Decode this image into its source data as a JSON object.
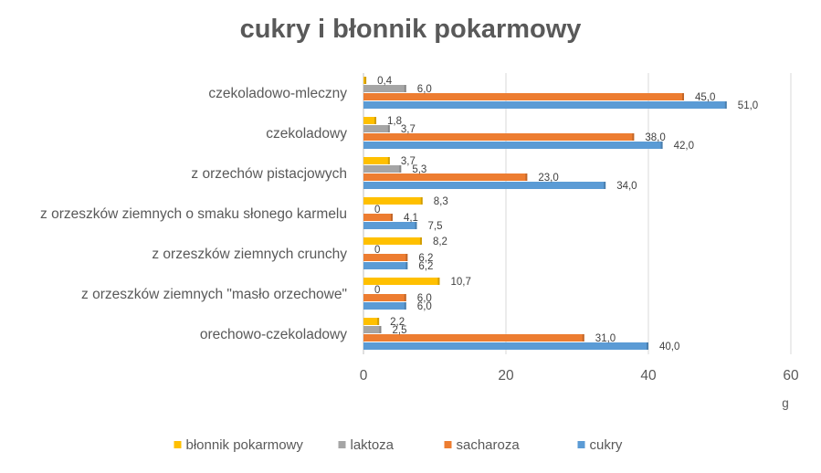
{
  "chart_data": {
    "type": "bar",
    "orientation": "horizontal",
    "title": "cukry i błonnik pokarmowy",
    "xlabel": "g",
    "ylabel": "",
    "xlim": [
      0,
      60
    ],
    "xticks": [
      0,
      20,
      40,
      60
    ],
    "grid": true,
    "legend_position": "bottom",
    "categories": [
      "czekoladowo-mleczny",
      "czekoladowy",
      "z orzechów pistacjowych",
      "z orzeszków ziemnych o smaku słonego karmelu",
      "z orzeszków ziemnych crunchy",
      "z orzeszków ziemnych \"masło orzechowe\"",
      "orechowo-czekoladowy"
    ],
    "series": [
      {
        "name": "błonnik pokarmowy",
        "color": "#FFC000",
        "values": [
          0.4,
          1.8,
          3.7,
          8.3,
          8.2,
          10.7,
          2.2
        ],
        "labels": [
          "0,4",
          "1,8",
          "3,7",
          "8,3",
          "8,2",
          "10,7",
          "2,2"
        ]
      },
      {
        "name": "laktoza",
        "color": "#A5A5A5",
        "values": [
          6.0,
          3.7,
          5.3,
          0,
          0,
          0,
          2.5
        ],
        "labels": [
          "6,0",
          "3,7",
          "5,3",
          "0",
          "0",
          "0",
          "2,5"
        ]
      },
      {
        "name": "sacharoza",
        "color": "#ED7D31",
        "values": [
          45.0,
          38.0,
          23.0,
          4.1,
          6.2,
          6.0,
          31.0
        ],
        "labels": [
          "45,0",
          "38,0",
          "23,0",
          "4,1",
          "6,2",
          "6,0",
          "31,0"
        ]
      },
      {
        "name": "cukry",
        "color": "#5B9BD5",
        "values": [
          51.0,
          42.0,
          34.0,
          7.5,
          6.2,
          6.0,
          40.0
        ],
        "labels": [
          "51,0",
          "42,0",
          "34,0",
          "7,5",
          "6,2",
          "6,0",
          "40,0"
        ]
      }
    ]
  }
}
